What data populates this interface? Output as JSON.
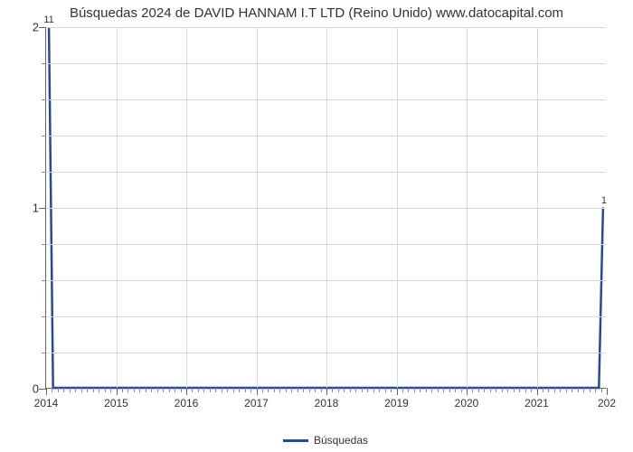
{
  "chart": {
    "type": "line",
    "title": "Búsquedas 2024 de DAVID HANNAM I.T LTD (Reino Unido) www.datocapital.com",
    "title_fontsize": 15,
    "background_color": "#ffffff",
    "plot_border_color": "#666666",
    "grid_color": "#d9d9d9",
    "line_color": "#244a99",
    "line_width": 2.5,
    "text_color": "#333333",
    "tick_fontsize": 12,
    "x": {
      "lim": [
        2014,
        2022
      ],
      "major_ticks": [
        2014,
        2015,
        2016,
        2017,
        2018,
        2019,
        2020,
        2021
      ],
      "last_tick_label": "202",
      "minor_step": 0.083333,
      "minor_tick_length": 5,
      "major_tick_length": 8
    },
    "y": {
      "lim": [
        0,
        2
      ],
      "major_ticks": [
        0,
        1,
        2
      ],
      "minor_subdivisions": 5,
      "minor_tick_length": 5,
      "major_tick_length": 8
    },
    "series": {
      "name": "Búsquedas",
      "points": [
        {
          "x": 2014.04,
          "y": 11,
          "visual_y": 2.0,
          "label": "11"
        },
        {
          "x": 2014.1,
          "y": 0,
          "visual_y": 0.0
        },
        {
          "x": 2021.9,
          "y": 0,
          "visual_y": 0.0
        },
        {
          "x": 2021.96,
          "y": 1,
          "visual_y": 1.0,
          "label": "1"
        }
      ]
    },
    "legend": {
      "label": "Búsquedas",
      "swatch_color": "#244a99"
    }
  }
}
